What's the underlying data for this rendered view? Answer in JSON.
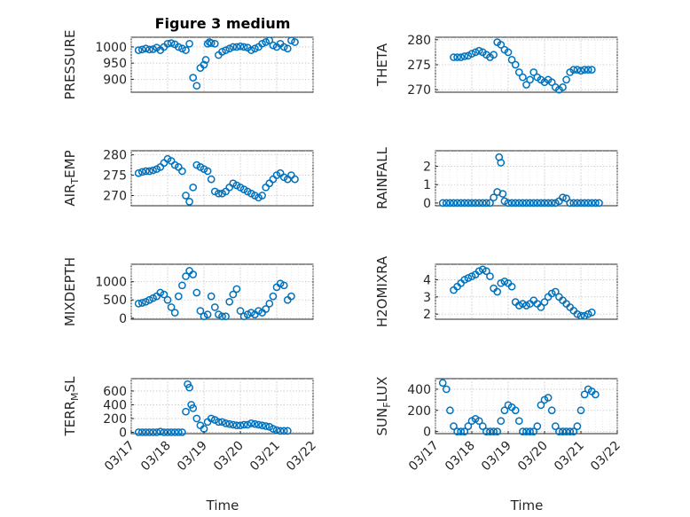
{
  "page": {
    "title": "Figure 3 medium",
    "background": "#ffffff",
    "marker_color": "#0072BD"
  },
  "chart_data": [
    {
      "type": "scatter",
      "name": "PRESSURE",
      "ylabel": "PRESSURE",
      "ylim": [
        860,
        1030
      ],
      "yticks": [
        900,
        950,
        1000
      ],
      "xlim": [
        0,
        5
      ],
      "show_x": false,
      "x": [
        0.2,
        0.3,
        0.4,
        0.5,
        0.6,
        0.7,
        0.8,
        0.9,
        1.0,
        1.1,
        1.2,
        1.3,
        1.4,
        1.5,
        1.6,
        1.7,
        1.8,
        1.9,
        2.0,
        2.05,
        2.1,
        2.15,
        2.2,
        2.3,
        2.4,
        2.5,
        2.6,
        2.7,
        2.8,
        2.9,
        3.0,
        3.1,
        3.2,
        3.3,
        3.4,
        3.5,
        3.6,
        3.7,
        3.8,
        3.9,
        4.0,
        4.1,
        4.2,
        4.3,
        4.4,
        4.5
      ],
      "y": [
        990,
        992,
        995,
        992,
        993,
        998,
        990,
        1000,
        1010,
        1012,
        1008,
        1000,
        995,
        990,
        1010,
        905,
        880,
        935,
        945,
        960,
        1010,
        1015,
        1012,
        1010,
        975,
        985,
        990,
        995,
        1000,
        1000,
        1002,
        1000,
        998,
        990,
        995,
        1000,
        1010,
        1015,
        1020,
        1005,
        1000,
        1010,
        1000,
        995,
        1020,
        1015
      ]
    },
    {
      "type": "scatter",
      "name": "THETA",
      "ylabel": "THETA",
      "ylim": [
        269.5,
        280.5
      ],
      "yticks": [
        270,
        275,
        280
      ],
      "xlim": [
        0,
        5
      ],
      "show_x": false,
      "x": [
        0.5,
        0.6,
        0.7,
        0.8,
        0.9,
        1.0,
        1.1,
        1.2,
        1.3,
        1.4,
        1.5,
        1.6,
        1.7,
        1.8,
        1.9,
        2.0,
        2.1,
        2.2,
        2.3,
        2.4,
        2.5,
        2.6,
        2.7,
        2.8,
        2.9,
        3.0,
        3.1,
        3.2,
        3.3,
        3.4,
        3.5,
        3.6,
        3.7,
        3.8,
        3.9,
        4.0,
        4.1,
        4.2,
        4.3
      ],
      "y": [
        276.5,
        276.5,
        276.5,
        276.7,
        276.8,
        277.2,
        277.5,
        277.8,
        277.5,
        277.0,
        276.5,
        277.0,
        279.5,
        279.0,
        278.0,
        277.5,
        276.0,
        275.0,
        273.5,
        272.5,
        271.0,
        272.0,
        273.5,
        272.5,
        272.0,
        271.5,
        272.0,
        271.5,
        270.5,
        270.0,
        270.5,
        272.0,
        273.5,
        274.0,
        274.0,
        273.8,
        274.0,
        274.0,
        274.0
      ]
    },
    {
      "type": "scatter",
      "name": "AIR_TEMP",
      "ylabel": "AIR_TEMP",
      "ylim": [
        267.5,
        281
      ],
      "yticks": [
        270,
        275,
        280
      ],
      "xlim": [
        0,
        5
      ],
      "show_x": false,
      "x": [
        0.2,
        0.3,
        0.4,
        0.5,
        0.6,
        0.7,
        0.8,
        0.9,
        1.0,
        1.1,
        1.2,
        1.3,
        1.4,
        1.5,
        1.6,
        1.7,
        1.8,
        1.9,
        2.0,
        2.1,
        2.2,
        2.3,
        2.4,
        2.5,
        2.6,
        2.7,
        2.8,
        2.9,
        3.0,
        3.1,
        3.2,
        3.3,
        3.4,
        3.5,
        3.6,
        3.7,
        3.8,
        3.9,
        4.0,
        4.1,
        4.2,
        4.3,
        4.4,
        4.5
      ],
      "y": [
        275.5,
        275.8,
        276.0,
        276.0,
        276.2,
        276.5,
        277.0,
        278.0,
        279.0,
        278.5,
        277.5,
        277.0,
        276.0,
        270.0,
        268.5,
        272.0,
        277.5,
        277.0,
        276.5,
        276.0,
        274.0,
        271.0,
        270.5,
        270.5,
        271.0,
        272.0,
        273.0,
        272.5,
        272.0,
        271.5,
        271.0,
        270.5,
        270.0,
        269.5,
        270.0,
        272.0,
        273.0,
        274.0,
        275.0,
        275.5,
        274.5,
        274.0,
        275.0,
        274.0
      ]
    },
    {
      "type": "scatter",
      "name": "RAINFALL",
      "ylabel": "RAINFALL",
      "ylim": [
        -0.15,
        2.85
      ],
      "yticks": [
        0,
        1,
        2
      ],
      "xlim": [
        0,
        5
      ],
      "show_x": false,
      "x": [
        0.2,
        0.3,
        0.4,
        0.5,
        0.6,
        0.7,
        0.8,
        0.9,
        1.0,
        1.1,
        1.2,
        1.3,
        1.4,
        1.5,
        1.6,
        1.7,
        1.75,
        1.8,
        1.85,
        1.9,
        2.0,
        2.1,
        2.2,
        2.3,
        2.4,
        2.5,
        2.6,
        2.7,
        2.8,
        2.9,
        3.0,
        3.1,
        3.2,
        3.3,
        3.4,
        3.5,
        3.6,
        3.7,
        3.8,
        3.9,
        4.0,
        4.1,
        4.2,
        4.3,
        4.4,
        4.5
      ],
      "y": [
        0,
        0,
        0,
        0,
        0,
        0,
        0,
        0,
        0,
        0,
        0,
        0,
        0,
        0,
        0.3,
        0.6,
        2.5,
        2.2,
        0.5,
        0.1,
        0,
        0,
        0,
        0,
        0,
        0,
        0,
        0,
        0,
        0,
        0,
        0,
        0,
        0,
        0.1,
        0.3,
        0.25,
        0,
        0,
        0,
        0,
        0,
        0,
        0,
        0,
        0
      ]
    },
    {
      "type": "scatter",
      "name": "MIXDEPTH",
      "ylabel": "MIXDEPTH",
      "ylim": [
        -30,
        1480
      ],
      "yticks": [
        0,
        500,
        1000
      ],
      "xlim": [
        0,
        5
      ],
      "show_x": false,
      "x": [
        0.2,
        0.3,
        0.4,
        0.5,
        0.6,
        0.7,
        0.8,
        0.9,
        1.0,
        1.1,
        1.2,
        1.3,
        1.4,
        1.5,
        1.6,
        1.7,
        1.8,
        1.9,
        2.0,
        2.1,
        2.2,
        2.3,
        2.4,
        2.5,
        2.6,
        2.7,
        2.8,
        2.9,
        3.0,
        3.1,
        3.2,
        3.3,
        3.4,
        3.5,
        3.6,
        3.7,
        3.8,
        3.9,
        4.0,
        4.1,
        4.2,
        4.3,
        4.4
      ],
      "y": [
        400,
        420,
        450,
        500,
        550,
        600,
        700,
        650,
        500,
        300,
        150,
        600,
        900,
        1150,
        1300,
        1200,
        700,
        200,
        50,
        100,
        600,
        300,
        100,
        50,
        50,
        450,
        650,
        800,
        200,
        50,
        100,
        150,
        100,
        200,
        150,
        250,
        400,
        600,
        850,
        950,
        900,
        500,
        600
      ]
    },
    {
      "type": "scatter",
      "name": "H2OMIXRA",
      "ylabel": "H2OMIXRA",
      "ylim": [
        1.7,
        4.9
      ],
      "yticks": [
        2,
        3,
        4
      ],
      "xlim": [
        0,
        5
      ],
      "show_x": false,
      "x": [
        0.5,
        0.6,
        0.7,
        0.8,
        0.9,
        1.0,
        1.1,
        1.2,
        1.3,
        1.4,
        1.5,
        1.6,
        1.7,
        1.8,
        1.9,
        2.0,
        2.1,
        2.2,
        2.3,
        2.4,
        2.5,
        2.6,
        2.7,
        2.8,
        2.9,
        3.0,
        3.1,
        3.2,
        3.3,
        3.4,
        3.5,
        3.6,
        3.7,
        3.8,
        3.9,
        4.0,
        4.1,
        4.2,
        4.3
      ],
      "y": [
        3.4,
        3.6,
        3.8,
        4.0,
        4.1,
        4.2,
        4.3,
        4.5,
        4.6,
        4.5,
        4.2,
        3.5,
        3.3,
        3.8,
        3.9,
        3.8,
        3.6,
        2.7,
        2.5,
        2.6,
        2.5,
        2.6,
        2.8,
        2.6,
        2.4,
        2.7,
        3.0,
        3.2,
        3.3,
        3.0,
        2.8,
        2.6,
        2.4,
        2.2,
        2.0,
        1.9,
        1.9,
        2.0,
        2.1
      ]
    },
    {
      "type": "scatter",
      "name": "TERR_MSL",
      "ylabel": "TERR_MSL",
      "ylim": [
        -20,
        780
      ],
      "yticks": [
        0,
        200,
        400,
        600
      ],
      "xlim": [
        0,
        5
      ],
      "show_x": true,
      "x": [
        0.2,
        0.3,
        0.4,
        0.5,
        0.6,
        0.7,
        0.8,
        0.9,
        1.0,
        1.1,
        1.2,
        1.3,
        1.4,
        1.5,
        1.55,
        1.6,
        1.65,
        1.7,
        1.8,
        1.9,
        2.0,
        2.1,
        2.2,
        2.3,
        2.4,
        2.5,
        2.6,
        2.7,
        2.8,
        2.9,
        3.0,
        3.1,
        3.2,
        3.3,
        3.4,
        3.5,
        3.6,
        3.7,
        3.8,
        3.9,
        4.0,
        4.1,
        4.2,
        4.3
      ],
      "y": [
        0,
        0,
        0,
        0,
        0,
        0,
        10,
        0,
        0,
        0,
        0,
        0,
        0,
        300,
        700,
        650,
        400,
        350,
        200,
        100,
        50,
        150,
        200,
        180,
        150,
        150,
        130,
        120,
        110,
        100,
        100,
        110,
        110,
        130,
        120,
        110,
        100,
        90,
        80,
        50,
        30,
        20,
        20,
        20
      ]
    },
    {
      "type": "scatter",
      "name": "SUN_FLUX",
      "ylabel": "SUN_FLUX",
      "ylim": [
        -20,
        500
      ],
      "yticks": [
        0,
        200,
        400
      ],
      "xlim": [
        0,
        5
      ],
      "show_x": true,
      "x": [
        0.2,
        0.3,
        0.4,
        0.5,
        0.6,
        0.7,
        0.8,
        0.9,
        1.0,
        1.1,
        1.2,
        1.3,
        1.4,
        1.5,
        1.6,
        1.7,
        1.8,
        1.9,
        2.0,
        2.1,
        2.2,
        2.3,
        2.4,
        2.5,
        2.6,
        2.7,
        2.8,
        2.9,
        3.0,
        3.1,
        3.2,
        3.3,
        3.4,
        3.5,
        3.6,
        3.7,
        3.8,
        3.9,
        4.0,
        4.1,
        4.2,
        4.3,
        4.4
      ],
      "y": [
        460,
        400,
        200,
        50,
        0,
        0,
        0,
        50,
        100,
        120,
        100,
        50,
        0,
        0,
        0,
        0,
        100,
        200,
        250,
        230,
        200,
        100,
        0,
        0,
        0,
        0,
        50,
        250,
        300,
        320,
        200,
        50,
        0,
        0,
        0,
        0,
        0,
        50,
        200,
        350,
        400,
        380,
        350
      ]
    }
  ],
  "x_axis": {
    "ticks": [
      "03/17",
      "03/18",
      "03/19",
      "03/20",
      "03/21",
      "03/22"
    ],
    "label": "Time"
  }
}
